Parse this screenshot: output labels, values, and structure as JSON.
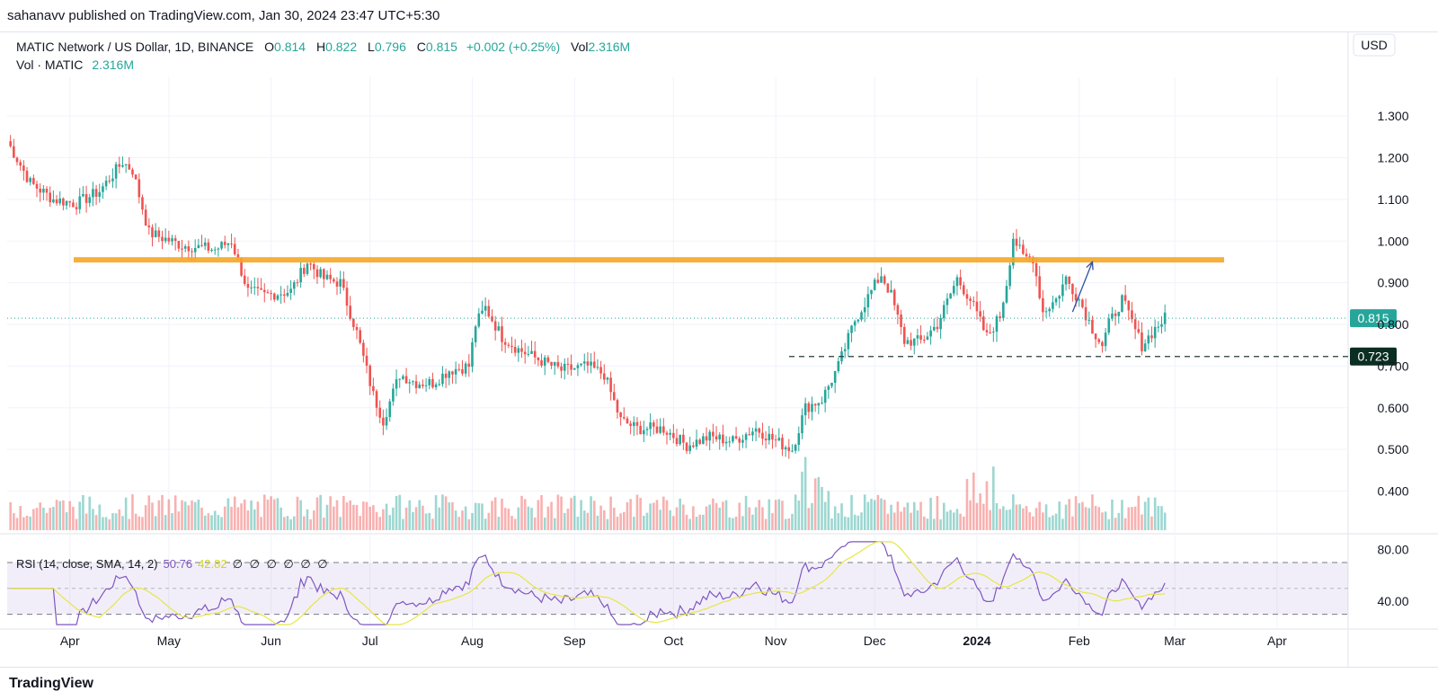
{
  "header": {
    "publish_line": "sahanavv published on TradingView.com, Jan 30, 2024 23:47 UTC+5:30"
  },
  "legend": {
    "symbol": "MATIC Network / US Dollar, 1D, BINANCE",
    "open_label": "O",
    "open": "0.814",
    "high_label": "H",
    "high": "0.822",
    "low_label": "L",
    "low": "0.796",
    "close_label": "C",
    "close": "0.815",
    "change": "+0.002 (+0.25%)",
    "vol_label": "Vol",
    "vol": "2.316M",
    "vol_row_label": "Vol · MATIC",
    "vol_row_value": "2.316M"
  },
  "currency": "USD",
  "rsi_legend": {
    "label": "RSI (14, close, SMA, 14, 2)",
    "rsi": "50.76",
    "sma": "42.82",
    "placeholders": "∅ ∅ ∅ ∅ ∅ ∅"
  },
  "footer": {
    "logo": "TradingView"
  },
  "colors": {
    "up": "#26a69a",
    "down": "#ef5350",
    "resistance": "#f5a623",
    "rsi": "#7e57c2",
    "rsi_sma": "#e6e645",
    "arrow": "#2e4fa6",
    "current_price_tag": "#26a69a",
    "support_tag": "#0b2e22"
  },
  "chart_data": {
    "type": "candlestick",
    "y_axis": {
      "min": 0.35,
      "max": 1.35,
      "ticks": [
        "1.300",
        "1.200",
        "1.100",
        "1.000",
        "0.900",
        "0.800",
        "0.700",
        "0.600",
        "0.500",
        "0.400"
      ]
    },
    "x_axis": {
      "ticks": [
        "Apr",
        "May",
        "Jun",
        "Jul",
        "Aug",
        "Sep",
        "Oct",
        "Nov",
        "Dec",
        "2024",
        "Feb",
        "Mar",
        "Apr"
      ]
    },
    "current_price": "0.815",
    "support_level": "0.723",
    "resistance_level": 0.955,
    "arrow_from": {
      "date": "2024-01-30",
      "price": 0.83
    },
    "arrow_to": {
      "date": "2024-02-05",
      "price": 0.95
    },
    "price_anchors": [
      [
        "2023-03-13",
        1.24
      ],
      [
        "2023-03-20",
        1.14
      ],
      [
        "2023-03-27",
        1.1
      ],
      [
        "2023-04-03",
        1.09
      ],
      [
        "2023-04-10",
        1.12
      ],
      [
        "2023-04-17",
        1.19
      ],
      [
        "2023-04-20",
        1.17
      ],
      [
        "2023-04-25",
        1.02
      ],
      [
        "2023-05-05",
        0.99
      ],
      [
        "2023-05-15",
        0.98
      ],
      [
        "2023-05-20",
        1.0
      ],
      [
        "2023-05-25",
        0.88
      ],
      [
        "2023-05-30",
        0.87
      ],
      [
        "2023-06-07",
        0.88
      ],
      [
        "2023-06-12",
        0.95
      ],
      [
        "2023-06-17",
        0.91
      ],
      [
        "2023-06-22",
        0.9
      ],
      [
        "2023-06-27",
        0.78
      ],
      [
        "2023-07-02",
        0.63
      ],
      [
        "2023-07-05",
        0.57
      ],
      [
        "2023-07-10",
        0.68
      ],
      [
        "2023-07-15",
        0.66
      ],
      [
        "2023-07-20",
        0.66
      ],
      [
        "2023-07-25",
        0.69
      ],
      [
        "2023-07-31",
        0.7
      ],
      [
        "2023-08-02",
        0.8
      ],
      [
        "2023-08-05",
        0.84
      ],
      [
        "2023-08-10",
        0.77
      ],
      [
        "2023-08-15",
        0.74
      ],
      [
        "2023-08-20",
        0.72
      ],
      [
        "2023-08-28",
        0.69
      ],
      [
        "2023-09-05",
        0.7
      ],
      [
        "2023-09-10",
        0.68
      ],
      [
        "2023-09-15",
        0.57
      ],
      [
        "2023-09-20",
        0.55
      ],
      [
        "2023-09-28",
        0.55
      ],
      [
        "2023-10-05",
        0.51
      ],
      [
        "2023-10-12",
        0.53
      ],
      [
        "2023-10-19",
        0.52
      ],
      [
        "2023-10-26",
        0.55
      ],
      [
        "2023-11-01",
        0.52
      ],
      [
        "2023-11-06",
        0.5
      ],
      [
        "2023-11-10",
        0.6
      ],
      [
        "2023-11-15",
        0.62
      ],
      [
        "2023-11-20",
        0.7
      ],
      [
        "2023-11-25",
        0.81
      ],
      [
        "2023-11-30",
        0.88
      ],
      [
        "2023-12-03",
        0.92
      ],
      [
        "2023-12-06",
        0.87
      ],
      [
        "2023-12-10",
        0.76
      ],
      [
        "2023-12-15",
        0.76
      ],
      [
        "2023-12-20",
        0.8
      ],
      [
        "2023-12-26",
        0.91
      ],
      [
        "2023-12-30",
        0.86
      ],
      [
        "2024-01-04",
        0.77
      ],
      [
        "2024-01-08",
        0.82
      ],
      [
        "2024-01-10",
        0.9
      ],
      [
        "2024-01-12",
        1.01
      ],
      [
        "2024-01-15",
        0.96
      ],
      [
        "2024-01-18",
        0.96
      ],
      [
        "2024-01-21",
        0.83
      ],
      [
        "2024-01-25",
        0.86
      ],
      [
        "2024-01-28",
        0.91
      ],
      [
        "2024-02-01",
        0.86
      ],
      [
        "2024-02-05",
        0.79
      ],
      [
        "2024-02-08",
        0.75
      ],
      [
        "2024-02-10",
        0.8
      ],
      [
        "2024-02-14",
        0.86
      ],
      [
        "2024-02-20",
        0.75
      ],
      [
        "2024-02-24",
        0.79
      ],
      [
        "2024-02-27",
        0.815
      ]
    ],
    "rsi_panel": {
      "upper_band": 70,
      "lower_band": 30,
      "ticks": [
        "80.00",
        "40.00"
      ]
    },
    "dates": {
      "start": "2023-03-13",
      "end": "2024-02-27",
      "x_ticks": [
        [
          "2023-04-01",
          "Apr"
        ],
        [
          "2023-05-01",
          "May"
        ],
        [
          "2023-06-01",
          "Jun"
        ],
        [
          "2023-07-01",
          "Jul"
        ],
        [
          "2023-08-01",
          "Aug"
        ],
        [
          "2023-09-01",
          "Sep"
        ],
        [
          "2023-10-01",
          "Oct"
        ],
        [
          "2023-11-01",
          "Nov"
        ],
        [
          "2023-12-01",
          "Dec"
        ],
        [
          "2024-01-01",
          "2024"
        ],
        [
          "2024-02-01",
          "Feb"
        ],
        [
          "2024-03-01",
          "Mar"
        ],
        [
          "2024-04-01",
          "Apr"
        ]
      ]
    }
  }
}
